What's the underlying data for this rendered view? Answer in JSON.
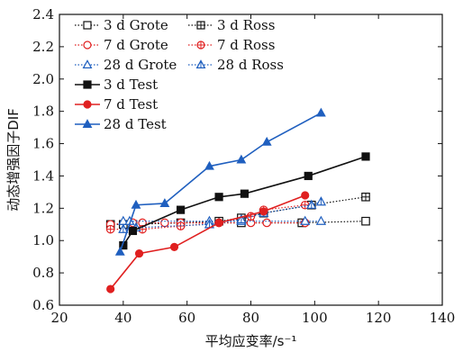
{
  "chart_data": {
    "type": "line",
    "title": "",
    "xlabel": "平均应变率/s⁻¹",
    "ylabel": "动态增强因子DIF",
    "xlim": [
      20,
      140
    ],
    "ylim": [
      0.6,
      2.4
    ],
    "xticks": [
      "20",
      "40",
      "60",
      "80",
      "100",
      "120",
      "140"
    ],
    "yticks": [
      "0.6",
      "0.8",
      "1.0",
      "1.2",
      "1.4",
      "1.6",
      "1.8",
      "2.0",
      "2.2",
      "2.4"
    ],
    "grid": false,
    "legend_position": "top-left",
    "series": [
      {
        "name": "3 d Grote",
        "color": "#111111",
        "dash": "dotted",
        "marker": "square-open",
        "x": [
          36,
          40,
          43,
          58,
          77,
          96,
          116
        ],
        "y": [
          1.1,
          1.1,
          1.1,
          1.11,
          1.11,
          1.11,
          1.12
        ]
      },
      {
        "name": "3 d Ross",
        "color": "#111111",
        "dash": "dotted",
        "marker": "square-cross",
        "x": [
          40,
          43,
          70,
          77,
          84,
          99,
          116
        ],
        "y": [
          1.1,
          1.1,
          1.12,
          1.14,
          1.17,
          1.22,
          1.27
        ]
      },
      {
        "name": "7 d Grote",
        "color": "#e02020",
        "dash": "dotted",
        "marker": "circle-open",
        "x": [
          36,
          43,
          46,
          53,
          58,
          70,
          80,
          85,
          97
        ],
        "y": [
          1.1,
          1.11,
          1.11,
          1.11,
          1.11,
          1.11,
          1.11,
          1.11,
          1.11
        ]
      },
      {
        "name": "7 d Ross",
        "color": "#e02020",
        "dash": "dotted",
        "marker": "circle-cross",
        "x": [
          36,
          46,
          58,
          70,
          80,
          84,
          97
        ],
        "y": [
          1.07,
          1.07,
          1.09,
          1.11,
          1.15,
          1.19,
          1.22
        ]
      },
      {
        "name": "28 d Grote",
        "color": "#1f5fbf",
        "dash": "dotted",
        "marker": "triangle-open",
        "x": [
          40,
          42,
          67,
          77,
          97,
          102
        ],
        "y": [
          1.12,
          1.12,
          1.12,
          1.12,
          1.12,
          1.12
        ]
      },
      {
        "name": "28 d Ross",
        "color": "#1f5fbf",
        "dash": "dotted",
        "marker": "triangle-cross",
        "x": [
          40,
          44,
          67,
          77,
          84,
          99,
          102
        ],
        "y": [
          1.07,
          1.08,
          1.1,
          1.13,
          1.17,
          1.22,
          1.24
        ]
      },
      {
        "name": "3 d Test",
        "color": "#111111",
        "dash": "solid",
        "marker": "square-filled",
        "x": [
          40,
          43,
          58,
          70,
          78,
          98,
          116
        ],
        "y": [
          0.97,
          1.06,
          1.19,
          1.27,
          1.29,
          1.4,
          1.52
        ]
      },
      {
        "name": "7 d Test",
        "color": "#e02020",
        "dash": "solid",
        "marker": "circle-filled",
        "x": [
          36,
          45,
          56,
          70,
          84,
          97
        ],
        "y": [
          0.7,
          0.92,
          0.96,
          1.11,
          1.18,
          1.28
        ]
      },
      {
        "name": "28 d Test",
        "color": "#1f5fbf",
        "dash": "solid",
        "marker": "triangle-filled",
        "x": [
          39,
          44,
          53,
          67,
          77,
          85,
          102
        ],
        "y": [
          0.93,
          1.22,
          1.23,
          1.46,
          1.5,
          1.61,
          1.79
        ]
      }
    ]
  }
}
